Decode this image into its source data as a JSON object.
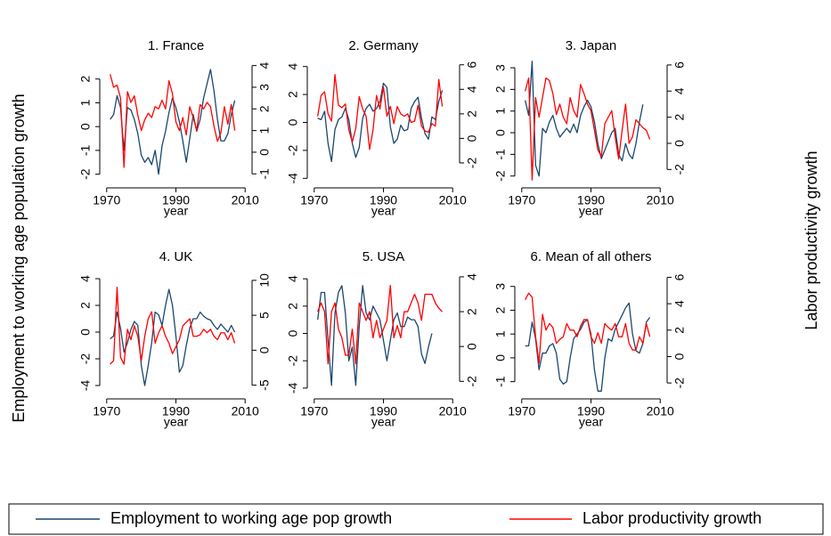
{
  "ylabel": "Employment to working age population growth",
  "y2label": "Labor productivity growth",
  "chart_data": [
    {
      "type": "line",
      "title": "1. France",
      "xlabel": "year",
      "x": [
        1971,
        1972,
        1973,
        1974,
        1975,
        1976,
        1977,
        1978,
        1979,
        1980,
        1981,
        1982,
        1983,
        1984,
        1985,
        1986,
        1987,
        1988,
        1989,
        1990,
        1991,
        1992,
        1993,
        1994,
        1995,
        1996,
        1997,
        1998,
        1999,
        2000,
        2001,
        2002,
        2003,
        2004,
        2005,
        2006,
        2007
      ],
      "xlim": [
        1968,
        2012
      ],
      "xticks": [
        1970,
        1990,
        2010
      ],
      "ylim": [
        -2.35,
        2.7
      ],
      "yticks": [
        -2,
        -1,
        0,
        1,
        2
      ],
      "y2lim": [
        -1.4,
        4.15
      ],
      "y2ticks": [
        -1,
        0,
        1,
        2,
        3,
        4
      ],
      "series": [
        {
          "name": "Employment to working age pop growth",
          "color": "#1a476f",
          "values": [
            0.3,
            0.5,
            1.3,
            0.8,
            -1.0,
            0.8,
            0.7,
            0.3,
            -0.3,
            -1.2,
            -1.5,
            -1.3,
            -1.6,
            -1.0,
            -2.0,
            -0.8,
            -0.2,
            0.6,
            1.2,
            0.8,
            0.2,
            -0.6,
            -1.5,
            -0.5,
            0.5,
            -0.2,
            0.3,
            1.2,
            1.8,
            2.4,
            1.5,
            0.3,
            -0.6,
            -0.6,
            -0.3,
            0.5,
            1.1
          ]
        },
        {
          "name": "Labor productivity growth",
          "color": "#ff0000",
          "axis": "y2",
          "values": [
            3.6,
            3.0,
            3.1,
            2.5,
            -0.7,
            2.8,
            2.3,
            2.6,
            1.7,
            1.0,
            1.5,
            1.8,
            1.6,
            2.1,
            2.0,
            2.4,
            2.0,
            3.3,
            2.7,
            1.4,
            1.0,
            1.6,
            0.8,
            2.1,
            1.6,
            1.0,
            2.2,
            2.0,
            2.3,
            2.1,
            1.2,
            0.5,
            0.9,
            2.1,
            1.3,
            2.2,
            1.0
          ]
        }
      ]
    },
    {
      "type": "line",
      "title": "2. Germany",
      "xlabel": "year",
      "x": [
        1971,
        1972,
        1973,
        1974,
        1975,
        1976,
        1977,
        1978,
        1979,
        1980,
        1981,
        1982,
        1983,
        1984,
        1985,
        1986,
        1987,
        1988,
        1989,
        1990,
        1991,
        1992,
        1993,
        1994,
        1995,
        1996,
        1997,
        1998,
        1999,
        2000,
        2001,
        2002,
        2003,
        2004,
        2005,
        2006,
        2007
      ],
      "xlim": [
        1968,
        2012
      ],
      "xticks": [
        1970,
        1990,
        2010
      ],
      "ylim": [
        -4.3,
        4.3
      ],
      "yticks": [
        -4,
        -2,
        0,
        2,
        4
      ],
      "y2lim": [
        -3.6,
        6.2
      ],
      "y2ticks": [
        -2,
        0,
        2,
        4,
        6
      ],
      "series": [
        {
          "name": "Employment to working age pop growth",
          "color": "#1a476f",
          "values": [
            0.3,
            0.2,
            0.8,
            -1.5,
            -2.8,
            -0.5,
            0.2,
            0.4,
            1.0,
            0.2,
            -1.5,
            -2.5,
            -1.8,
            0.3,
            1.0,
            1.3,
            0.8,
            1.0,
            1.5,
            2.8,
            2.5,
            -0.3,
            -1.5,
            -1.2,
            -0.2,
            -0.6,
            -0.5,
            1.0,
            1.5,
            1.8,
            0.3,
            -0.8,
            -1.2,
            0.4,
            0.2,
            1.5,
            2.3
          ]
        },
        {
          "name": "Labor productivity growth",
          "color": "#ff0000",
          "axis": "y2",
          "values": [
            1.8,
            3.5,
            3.8,
            2.0,
            1.4,
            5.2,
            2.7,
            2.5,
            2.8,
            0.7,
            -0.3,
            0.8,
            3.4,
            2.4,
            1.8,
            -0.9,
            0.7,
            3.5,
            2.4,
            4.2,
            1.8,
            2.6,
            1.2,
            2.6,
            2.0,
            1.8,
            2.0,
            1.3,
            1.4,
            2.7,
            1.0,
            0.6,
            0.5,
            1.2,
            1.0,
            4.8,
            2.6
          ]
        }
      ]
    },
    {
      "type": "line",
      "title": "3. Japan",
      "xlabel": "year",
      "x": [
        1971,
        1972,
        1973,
        1974,
        1975,
        1976,
        1977,
        1978,
        1979,
        1980,
        1981,
        1982,
        1983,
        1984,
        1985,
        1986,
        1987,
        1988,
        1989,
        1990,
        1991,
        1992,
        1993,
        1994,
        1995,
        1996,
        1997,
        1998,
        1999,
        2000,
        2001,
        2002,
        2003,
        2004,
        2005,
        2006,
        2007
      ],
      "xlim": [
        1968,
        2012
      ],
      "xticks": [
        1970,
        1990,
        2010
      ],
      "ylim": [
        -2.3,
        3.25
      ],
      "yticks": [
        -2,
        -1,
        0,
        1,
        2,
        3
      ],
      "y2lim": [
        -3.0,
        6.2
      ],
      "y2ticks": [
        -2,
        0,
        2,
        4,
        6
      ],
      "series": [
        {
          "name": "Employment to working age pop growth",
          "color": "#1a476f",
          "values": [
            1.5,
            0.8,
            3.3,
            -1.5,
            -2.0,
            0.2,
            0.0,
            0.5,
            0.8,
            0.2,
            -0.2,
            0.0,
            0.2,
            0.0,
            0.4,
            0.0,
            0.8,
            1.2,
            1.5,
            1.2,
            0.5,
            -0.5,
            -1.2,
            -0.8,
            -0.4,
            0.0,
            0.2,
            -1.0,
            -1.3,
            -0.5,
            -1.0,
            -1.2,
            -0.5,
            0.5,
            1.3,
            null,
            null
          ]
        },
        {
          "name": "Labor productivity growth",
          "color": "#ff0000",
          "axis": "y2",
          "values": [
            4.0,
            5.0,
            -2.8,
            3.5,
            2.0,
            3.5,
            5.0,
            4.8,
            3.8,
            2.2,
            3.0,
            2.0,
            1.5,
            3.5,
            2.5,
            2.0,
            4.5,
            3.8,
            3.0,
            2.5,
            1.0,
            -0.5,
            -1.0,
            1.5,
            2.0,
            2.5,
            0.5,
            -1.2,
            1.0,
            3.0,
            0.0,
            0.5,
            1.8,
            1.5,
            1.2,
            1.0,
            0.3
          ]
        }
      ]
    },
    {
      "type": "line",
      "title": "4. UK",
      "xlabel": "year",
      "x": [
        1971,
        1972,
        1973,
        1974,
        1975,
        1976,
        1977,
        1978,
        1979,
        1980,
        1981,
        1982,
        1983,
        1984,
        1985,
        1986,
        1987,
        1988,
        1989,
        1990,
        1991,
        1992,
        1993,
        1994,
        1995,
        1996,
        1997,
        1998,
        1999,
        2000,
        2001,
        2002,
        2003,
        2004,
        2005,
        2006,
        2007
      ],
      "xlim": [
        1968,
        2012
      ],
      "xticks": [
        1970,
        1990,
        2010
      ],
      "ylim": [
        -4.6,
        4.4
      ],
      "yticks": [
        -4,
        -2,
        0,
        2,
        4
      ],
      "y2lim": [
        -6.2,
        11
      ],
      "y2ticks": [
        -5,
        0,
        5,
        10
      ],
      "series": [
        {
          "name": "Employment to working age pop growth",
          "color": "#1a476f",
          "values": [
            -0.5,
            -0.3,
            1.5,
            0.3,
            -1.5,
            -0.8,
            0.2,
            0.8,
            0.5,
            -2.5,
            -4.0,
            -2.5,
            -0.8,
            1.5,
            1.3,
            0.5,
            2.0,
            3.2,
            2.0,
            -0.3,
            -3.0,
            -2.5,
            -1.0,
            0.3,
            1.0,
            1.0,
            1.5,
            1.2,
            1.0,
            0.9,
            0.5,
            0.2,
            0.6,
            0.3,
            0.0,
            0.5,
            0.0
          ]
        },
        {
          "name": "Labor productivity growth",
          "color": "#ff0000",
          "axis": "y2",
          "values": [
            -2.0,
            -1.5,
            9.0,
            -1.0,
            -2.0,
            3.0,
            1.5,
            3.5,
            2.0,
            -1.5,
            2.0,
            4.5,
            5.5,
            1.0,
            2.5,
            3.5,
            2.0,
            1.0,
            -0.5,
            0.5,
            1.5,
            3.5,
            4.0,
            4.5,
            2.0,
            2.0,
            2.2,
            3.0,
            2.5,
            3.0,
            2.0,
            1.5,
            2.5,
            2.5,
            1.5,
            2.5,
            1.0
          ]
        }
      ]
    },
    {
      "type": "line",
      "title": "5. USA",
      "xlabel": "year",
      "x": [
        1971,
        1972,
        1973,
        1974,
        1975,
        1976,
        1977,
        1978,
        1979,
        1980,
        1981,
        1982,
        1983,
        1984,
        1985,
        1986,
        1987,
        1988,
        1989,
        1990,
        1991,
        1992,
        1993,
        1994,
        1995,
        1996,
        1997,
        1998,
        1999,
        2000,
        2001,
        2002,
        2003,
        2004,
        2005,
        2006,
        2007
      ],
      "xlim": [
        1968,
        2012
      ],
      "xticks": [
        1970,
        1990,
        2010
      ],
      "ylim": [
        -4.4,
        4.4
      ],
      "yticks": [
        -4,
        -2,
        0,
        2,
        4
      ],
      "y2lim": [
        -2.7,
        4.2
      ],
      "y2ticks": [
        -2,
        0,
        2,
        4
      ],
      "series": [
        {
          "name": "Employment to working age pop growth",
          "color": "#1a476f",
          "values": [
            1.0,
            3.0,
            3.0,
            -0.5,
            -3.8,
            1.5,
            3.0,
            3.5,
            1.5,
            -2.0,
            -1.0,
            -3.8,
            0.5,
            3.5,
            1.5,
            1.0,
            2.0,
            1.5,
            1.0,
            -0.5,
            -2.0,
            -0.5,
            1.0,
            1.5,
            0.5,
            0.5,
            1.2,
            1.0,
            1.0,
            0.5,
            -1.5,
            -2.2,
            -1.0,
            0.0,
            null,
            null,
            null
          ]
        },
        {
          "name": "Labor productivity growth",
          "color": "#ff0000",
          "axis": "y2",
          "values": [
            2.0,
            2.5,
            2.0,
            -1.0,
            2.0,
            2.5,
            1.0,
            0.5,
            -0.5,
            -0.5,
            1.0,
            -1.0,
            2.5,
            2.0,
            1.5,
            2.0,
            0.5,
            1.5,
            0.5,
            1.0,
            1.5,
            3.5,
            0.5,
            1.2,
            0.5,
            2.0,
            2.0,
            2.5,
            3.0,
            2.5,
            1.5,
            3.0,
            3.0,
            3.0,
            2.5,
            2.2,
            2.0
          ]
        }
      ]
    },
    {
      "type": "line",
      "title": "6. Mean of all others",
      "xlabel": "year",
      "x": [
        1971,
        1972,
        1973,
        1974,
        1975,
        1976,
        1977,
        1978,
        1979,
        1980,
        1981,
        1982,
        1983,
        1984,
        1985,
        1986,
        1987,
        1988,
        1989,
        1990,
        1991,
        1992,
        1993,
        1994,
        1995,
        1996,
        1997,
        1998,
        1999,
        2000,
        2001,
        2002,
        2003,
        2004,
        2005,
        2006,
        2007
      ],
      "xlim": [
        1968,
        2012
      ],
      "xticks": [
        1970,
        1990,
        2010
      ],
      "ylim": [
        -1.5,
        3.55
      ],
      "yticks": [
        -1,
        0,
        1,
        2,
        3
      ],
      "y2lim": [
        -2.8,
        6.3
      ],
      "y2ticks": [
        -2,
        0,
        2,
        4,
        6
      ],
      "series": [
        {
          "name": "Employment to working age pop growth",
          "color": "#1a476f",
          "values": [
            0.5,
            0.5,
            1.5,
            0.8,
            -0.5,
            0.2,
            0.2,
            0.5,
            0.6,
            0.2,
            -0.9,
            -1.1,
            -1.0,
            0.0,
            0.8,
            1.0,
            1.2,
            1.5,
            1.6,
            1.0,
            -0.5,
            -1.4,
            -1.4,
            0.0,
            0.8,
            0.7,
            1.2,
            1.5,
            1.8,
            2.1,
            2.3,
            1.0,
            0.3,
            0.2,
            0.6,
            1.5,
            1.7
          ]
        },
        {
          "name": "Labor productivity growth",
          "color": "#ff0000",
          "axis": "y2",
          "values": [
            4.3,
            4.8,
            4.5,
            1.5,
            -0.5,
            3.2,
            2.0,
            2.5,
            2.2,
            1.0,
            1.3,
            1.5,
            2.5,
            2.0,
            2.0,
            1.5,
            2.3,
            2.8,
            2.8,
            1.5,
            1.0,
            1.8,
            1.0,
            2.5,
            2.2,
            2.0,
            2.5,
            1.5,
            1.5,
            2.5,
            1.0,
            0.5,
            0.5,
            1.5,
            1.0,
            2.5,
            1.5
          ]
        }
      ]
    }
  ]
}
